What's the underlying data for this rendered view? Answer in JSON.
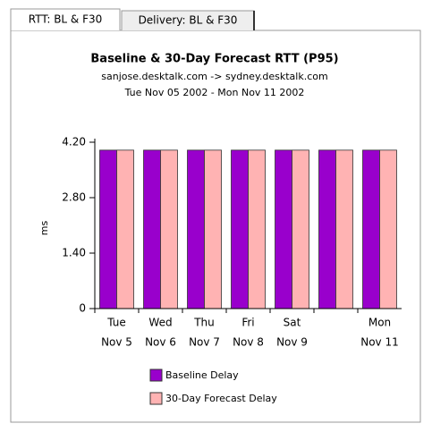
{
  "tabs": [
    "RTT: BL & F30",
    "Delivery: BL & F30"
  ],
  "chart_data": {
    "type": "bar",
    "title": "Baseline & 30-Day Forecast RTT (P95)",
    "subtitle": "sanjose.desktalk.com -> sydney.desktalk.com",
    "date_range": "Tue Nov 05 2002 - Mon Nov 11 2002",
    "y_label": "ms",
    "categories": [
      [
        "Tue",
        "Nov 5"
      ],
      [
        "Wed",
        "Nov 6"
      ],
      [
        "Thu",
        "Nov 7"
      ],
      [
        "Fri",
        "Nov 8"
      ],
      [
        "Sat",
        "Nov 9"
      ],
      null,
      [
        "Mon",
        "Nov 11"
      ]
    ],
    "series": [
      {
        "name": "Baseline Delay",
        "color": "#9900cc",
        "values": [
          4.0,
          4.0,
          4.0,
          4.0,
          4.0,
          4.0,
          4.0
        ]
      },
      {
        "name": "30-Day Forecast Delay",
        "color": "#ffb3b3",
        "values": [
          4.0,
          4.0,
          4.0,
          4.0,
          4.0,
          4.0,
          4.0
        ]
      }
    ],
    "ylim": [
      0,
      4.2
    ],
    "yticks": [
      0,
      {
        "value": 1.4,
        "label": "1.40"
      },
      {
        "value": 2.8,
        "label": "2.80"
      },
      {
        "value": 4.2,
        "label": "4.20"
      }
    ]
  }
}
